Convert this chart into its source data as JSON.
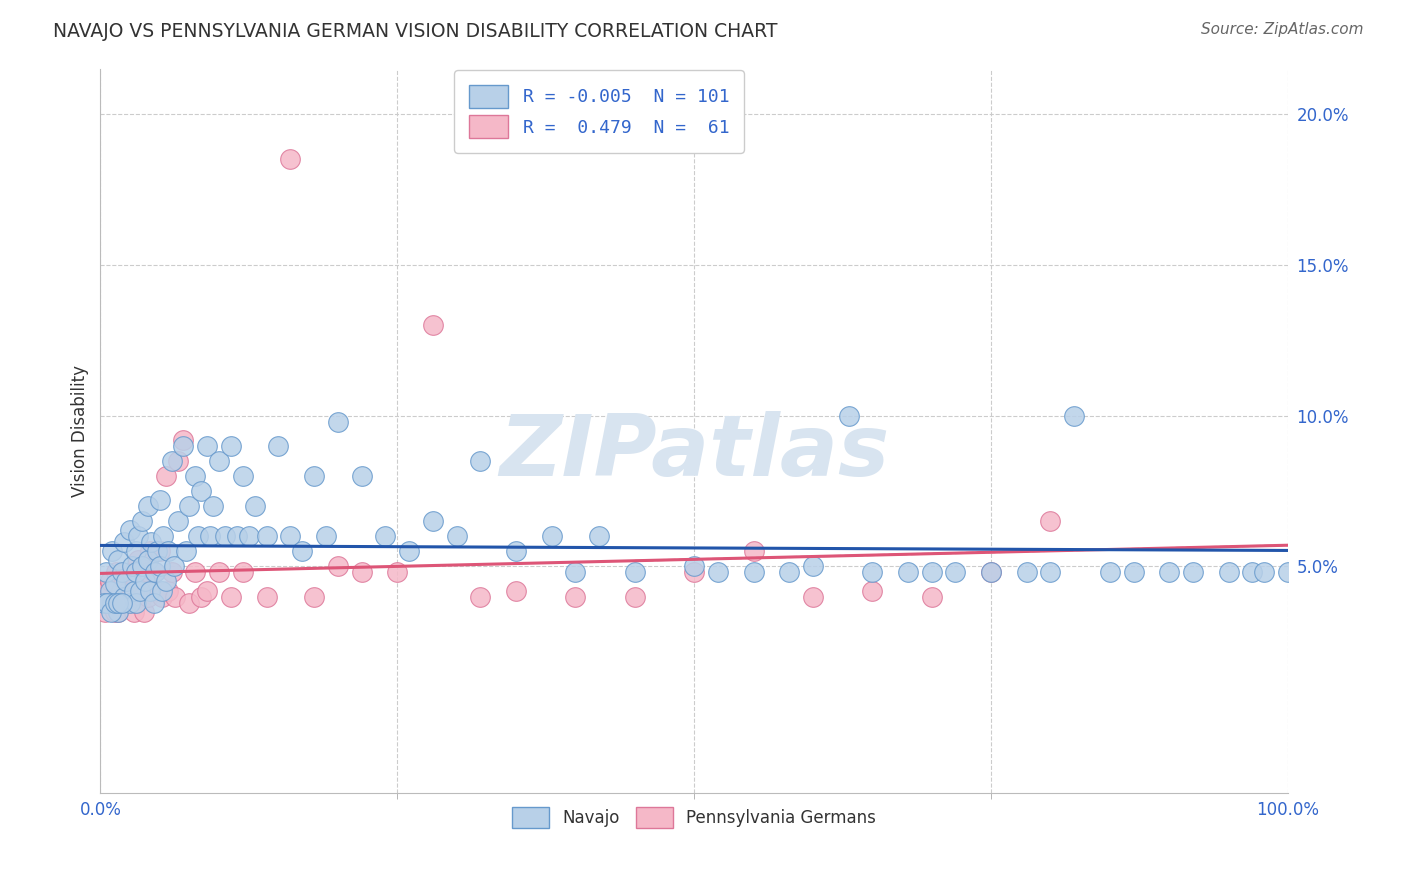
{
  "title": "NAVAJO VS PENNSYLVANIA GERMAN VISION DISABILITY CORRELATION CHART",
  "source": "Source: ZipAtlas.com",
  "ylabel": "Vision Disability",
  "xmin": 0.0,
  "xmax": 1.0,
  "ymin": -0.025,
  "ymax": 0.215,
  "navajo_R": -0.005,
  "navajo_N": 101,
  "penn_R": 0.479,
  "penn_N": 61,
  "navajo_color": "#b8d0e8",
  "penn_color": "#f5b8c8",
  "navajo_edge_color": "#6699cc",
  "penn_edge_color": "#dd7799",
  "navajo_line_color": "#2255aa",
  "penn_line_color": "#dd5577",
  "tick_color": "#3366cc",
  "grid_color": "#cccccc",
  "watermark_color": "#d8e4f0",
  "title_color": "#333333",
  "source_color": "#666666",
  "ylabel_color": "#333333",
  "ytick_positions": [
    0.05,
    0.1,
    0.15,
    0.2
  ],
  "ytick_labels": [
    "5.0%",
    "10.0%",
    "15.0%",
    "20.0%"
  ],
  "xtick_positions": [
    0.0,
    0.25,
    0.5,
    0.75,
    1.0
  ],
  "x_left_label": "0.0%",
  "x_right_label": "100.0%",
  "navajo_x": [
    0.005,
    0.008,
    0.01,
    0.01,
    0.012,
    0.015,
    0.015,
    0.018,
    0.02,
    0.02,
    0.022,
    0.025,
    0.025,
    0.027,
    0.028,
    0.03,
    0.03,
    0.03,
    0.032,
    0.033,
    0.035,
    0.035,
    0.038,
    0.04,
    0.04,
    0.042,
    0.043,
    0.045,
    0.046,
    0.048,
    0.05,
    0.05,
    0.052,
    0.053,
    0.055,
    0.057,
    0.06,
    0.062,
    0.065,
    0.07,
    0.072,
    0.075,
    0.08,
    0.082,
    0.085,
    0.09,
    0.092,
    0.095,
    0.1,
    0.105,
    0.11,
    0.115,
    0.12,
    0.125,
    0.13,
    0.14,
    0.15,
    0.16,
    0.17,
    0.18,
    0.19,
    0.2,
    0.22,
    0.24,
    0.26,
    0.28,
    0.3,
    0.32,
    0.35,
    0.38,
    0.4,
    0.42,
    0.45,
    0.5,
    0.52,
    0.55,
    0.58,
    0.6,
    0.63,
    0.65,
    0.68,
    0.7,
    0.72,
    0.75,
    0.78,
    0.8,
    0.82,
    0.85,
    0.87,
    0.9,
    0.92,
    0.95,
    0.97,
    0.98,
    1.0,
    0.003,
    0.006,
    0.009,
    0.012,
    0.015,
    0.018
  ],
  "navajo_y": [
    0.048,
    0.042,
    0.038,
    0.055,
    0.044,
    0.052,
    0.035,
    0.048,
    0.04,
    0.058,
    0.045,
    0.038,
    0.062,
    0.05,
    0.042,
    0.055,
    0.038,
    0.048,
    0.06,
    0.042,
    0.065,
    0.05,
    0.045,
    0.07,
    0.052,
    0.042,
    0.058,
    0.038,
    0.048,
    0.055,
    0.072,
    0.05,
    0.042,
    0.06,
    0.045,
    0.055,
    0.085,
    0.05,
    0.065,
    0.09,
    0.055,
    0.07,
    0.08,
    0.06,
    0.075,
    0.09,
    0.06,
    0.07,
    0.085,
    0.06,
    0.09,
    0.06,
    0.08,
    0.06,
    0.07,
    0.06,
    0.09,
    0.06,
    0.055,
    0.08,
    0.06,
    0.098,
    0.08,
    0.06,
    0.055,
    0.065,
    0.06,
    0.085,
    0.055,
    0.06,
    0.048,
    0.06,
    0.048,
    0.05,
    0.048,
    0.048,
    0.048,
    0.05,
    0.1,
    0.048,
    0.048,
    0.048,
    0.048,
    0.048,
    0.048,
    0.048,
    0.1,
    0.048,
    0.048,
    0.048,
    0.048,
    0.048,
    0.048,
    0.048,
    0.048,
    0.038,
    0.038,
    0.035,
    0.038,
    0.038,
    0.038
  ],
  "penn_x": [
    0.002,
    0.004,
    0.005,
    0.006,
    0.008,
    0.01,
    0.012,
    0.013,
    0.015,
    0.015,
    0.017,
    0.018,
    0.02,
    0.022,
    0.023,
    0.025,
    0.027,
    0.028,
    0.03,
    0.03,
    0.032,
    0.035,
    0.037,
    0.04,
    0.04,
    0.042,
    0.045,
    0.047,
    0.05,
    0.052,
    0.055,
    0.057,
    0.06,
    0.063,
    0.065,
    0.07,
    0.075,
    0.08,
    0.085,
    0.09,
    0.1,
    0.11,
    0.12,
    0.14,
    0.16,
    0.18,
    0.2,
    0.22,
    0.25,
    0.28,
    0.32,
    0.35,
    0.4,
    0.45,
    0.5,
    0.55,
    0.6,
    0.65,
    0.7,
    0.75,
    0.8
  ],
  "penn_y": [
    0.04,
    0.035,
    0.042,
    0.038,
    0.045,
    0.038,
    0.035,
    0.048,
    0.04,
    0.035,
    0.042,
    0.038,
    0.045,
    0.038,
    0.042,
    0.04,
    0.048,
    0.035,
    0.045,
    0.038,
    0.052,
    0.04,
    0.035,
    0.048,
    0.04,
    0.055,
    0.048,
    0.042,
    0.055,
    0.04,
    0.08,
    0.042,
    0.048,
    0.04,
    0.085,
    0.092,
    0.038,
    0.048,
    0.04,
    0.042,
    0.048,
    0.04,
    0.048,
    0.04,
    0.185,
    0.04,
    0.05,
    0.048,
    0.048,
    0.13,
    0.04,
    0.042,
    0.04,
    0.04,
    0.048,
    0.055,
    0.04,
    0.042,
    0.04,
    0.048,
    0.065
  ]
}
